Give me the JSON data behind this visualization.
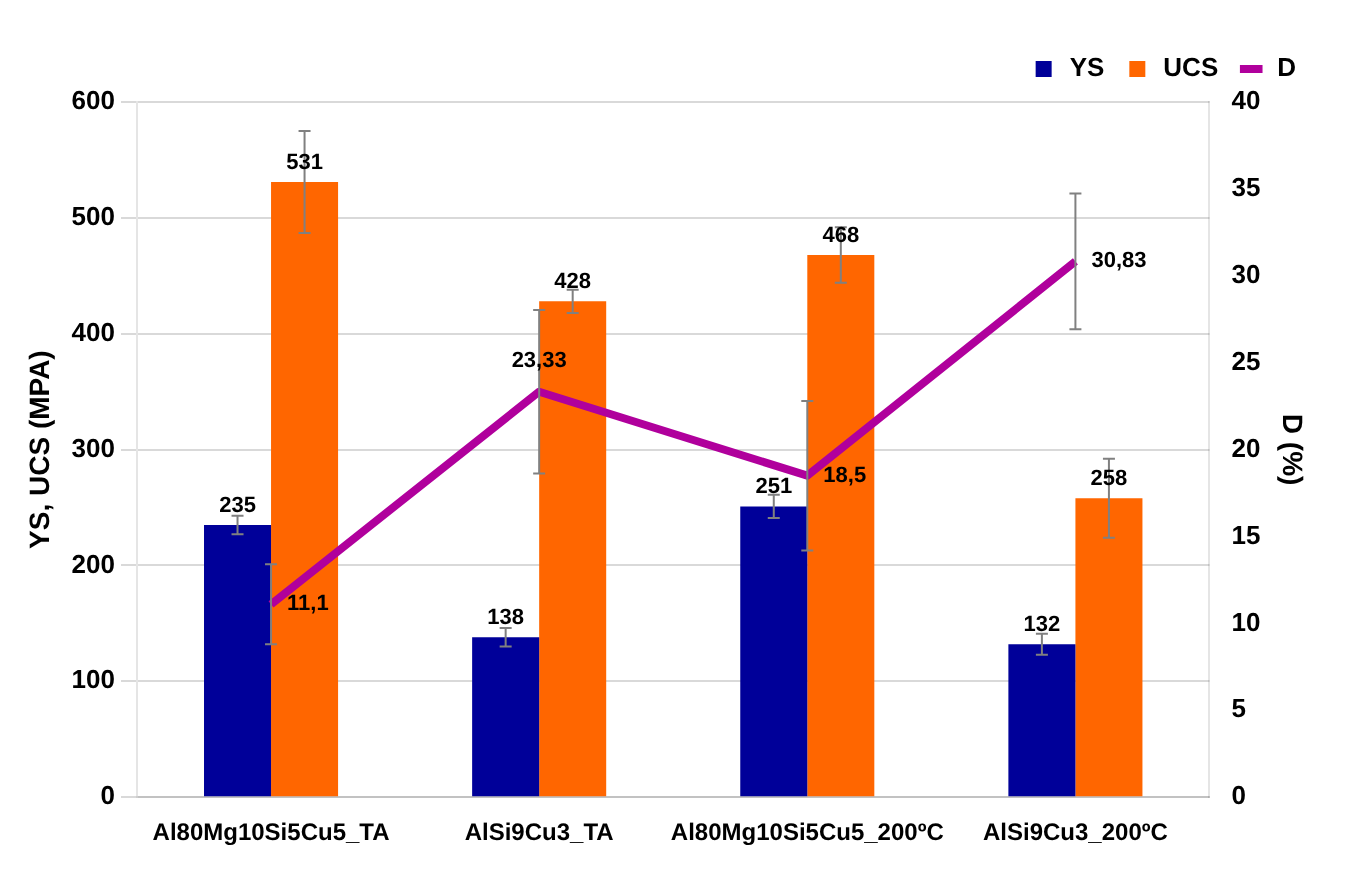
{
  "chart_data": {
    "type": "bar",
    "categories": [
      "Al80Mg10Si5Cu5_TA",
      "AlSi9Cu3_TA",
      "Al80Mg10Si5Cu5_200ºC",
      "AlSi9Cu3_200ºC"
    ],
    "ylabel": "YS, UCS (MPA)",
    "y2label": "D (%)",
    "series": [
      {
        "name": "YS",
        "color": "#000099",
        "values": [
          235,
          138,
          251,
          132
        ],
        "errors": [
          8,
          8,
          10,
          9
        ]
      },
      {
        "name": "UCS",
        "color": "#ff6600",
        "values": [
          531,
          428,
          468,
          258
        ],
        "errors": [
          44,
          10,
          24,
          34
        ]
      },
      {
        "name": "D",
        "type": "line",
        "axis": "y2",
        "color": "#b0009c",
        "values": [
          11.1,
          23.33,
          18.5,
          30.83
        ],
        "errors": [
          2.3,
          4.7,
          4.3,
          3.9
        ],
        "value_labels": [
          "11,1",
          "23,33",
          "18,5",
          "30,83"
        ]
      }
    ],
    "ylim": [
      0,
      600
    ],
    "yticks": [
      0,
      100,
      200,
      300,
      400,
      500,
      600
    ],
    "y2lim": [
      0,
      40
    ],
    "y2ticks": [
      0,
      5,
      10,
      15,
      20,
      25,
      30,
      35,
      40
    ],
    "data_labels": true,
    "grid": "y",
    "legend": "top right",
    "marker": "none"
  }
}
